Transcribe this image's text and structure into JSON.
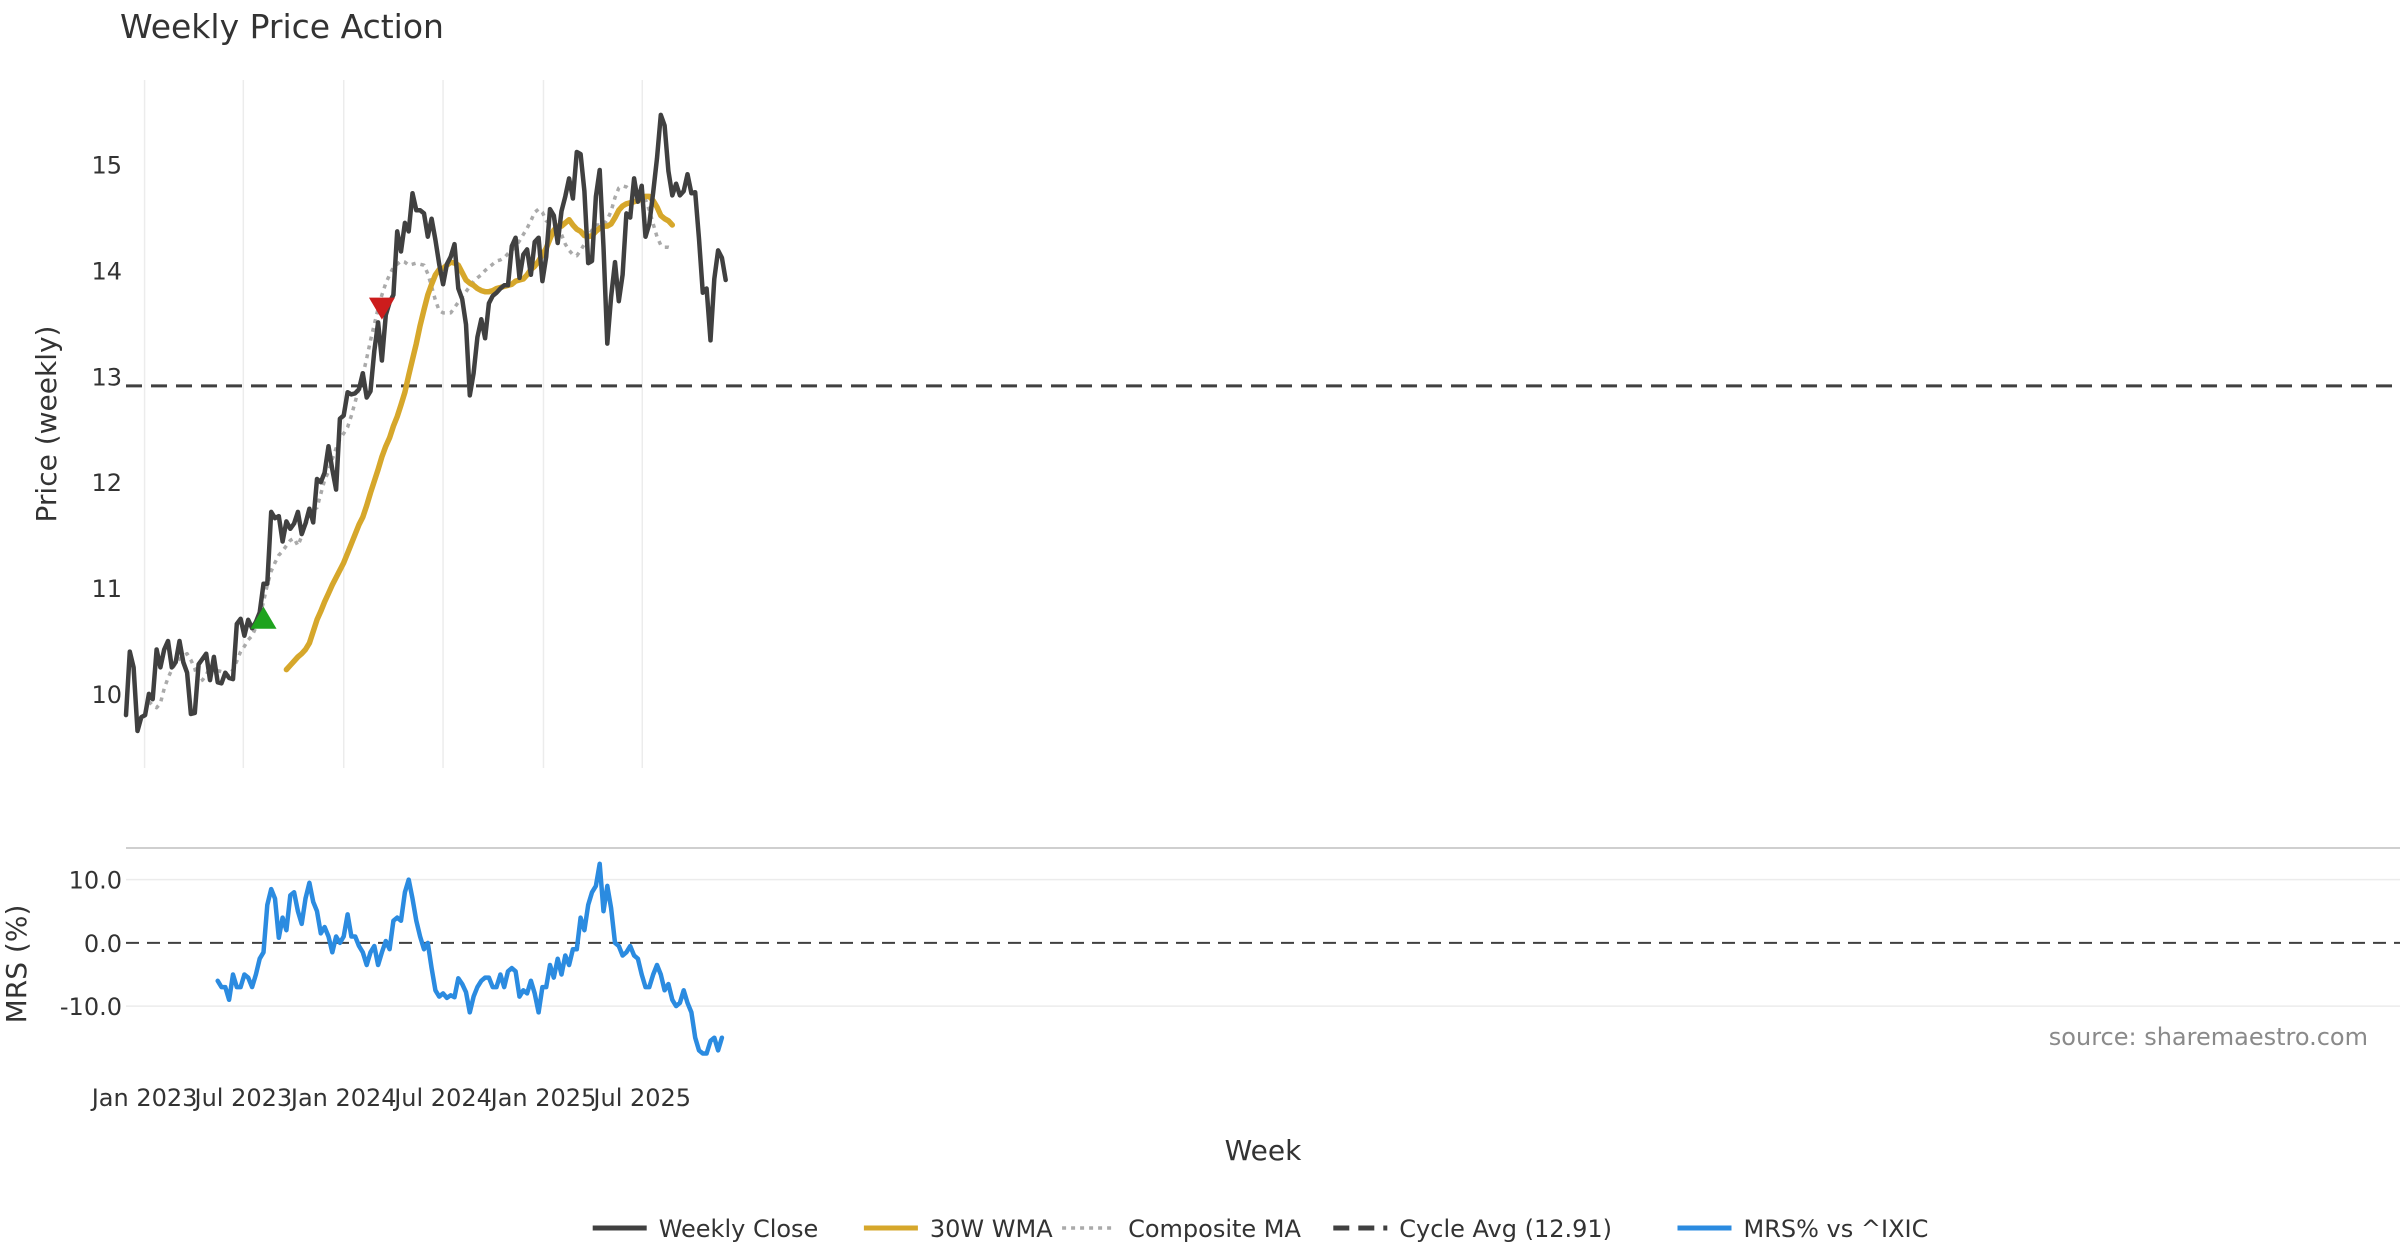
{
  "chart_data": [
    {
      "type": "line",
      "title": "Weekly Price Action",
      "ylabel": "Price (weekly)",
      "ylim": [
        9.3,
        15.8
      ],
      "yticks": [
        "10",
        "11",
        "12",
        "13",
        "14",
        "15"
      ],
      "grid": "vertical",
      "start_week": "2022-11-28",
      "x_label": "Week",
      "series": [
        {
          "name": "Weekly Close",
          "color": "#404040",
          "style": "solid",
          "values": [
            9.8,
            10.4,
            10.25,
            9.65,
            9.78,
            9.8,
            10,
            9.95,
            10.42,
            10.25,
            10.42,
            10.5,
            10.25,
            10.3,
            10.5,
            10.3,
            10.2,
            9.81,
            9.82,
            10.28,
            10.33,
            10.38,
            10.13,
            10.35,
            10.11,
            10.1,
            10.2,
            10.15,
            10.14,
            10.66,
            10.71,
            10.55,
            10.7,
            10.62,
            10.68,
            10.77,
            11.04,
            11.04,
            11.72,
            11.66,
            11.68,
            11.44,
            11.63,
            11.56,
            11.61,
            11.72,
            11.51,
            11.61,
            11.75,
            11.62,
            12.03,
            12,
            12.09,
            12.34,
            12.12,
            11.93,
            12.6,
            12.63,
            12.85,
            12.83,
            12.84,
            12.88,
            13.03,
            12.8,
            12.86,
            13.24,
            13.51,
            13.15,
            13.58,
            13.7,
            13.77,
            14.37,
            14.18,
            14.45,
            14.37,
            14.73,
            14.57,
            14.57,
            14.54,
            14.32,
            14.49,
            14.29,
            14.06,
            13.87,
            14.06,
            14.13,
            14.25,
            13.83,
            13.73,
            13.49,
            12.82,
            13.03,
            13.37,
            13.54,
            13.36,
            13.69,
            13.76,
            13.79,
            13.83,
            13.86,
            13.86,
            14.23,
            14.31,
            13.93,
            14.15,
            14.2,
            13.96,
            14.27,
            14.31,
            13.9,
            14.13,
            14.58,
            14.52,
            14.26,
            14.56,
            14.7,
            14.87,
            14.68,
            15.12,
            15.1,
            14.75,
            14.07,
            14.09,
            14.7,
            14.95,
            14.22,
            13.31,
            13.75,
            14.08,
            13.71,
            13.96,
            14.54,
            14.5,
            14.87,
            14.65,
            14.8,
            14.32,
            14.44,
            14.74,
            15.06,
            15.47,
            15.37,
            14.94,
            14.71,
            14.82,
            14.71,
            14.75,
            14.91,
            14.73,
            14.74,
            14.3,
            13.79,
            13.83,
            13.34,
            13.92,
            14.19,
            14.12,
            13.91
          ]
        },
        {
          "name": "30W WMA",
          "color": "#d6a72b",
          "style": "solid",
          "start_index": 42,
          "values": [
            10.23,
            10.27,
            10.31,
            10.35,
            10.38,
            10.42,
            10.48,
            10.59,
            10.7,
            10.78,
            10.87,
            10.95,
            11.03,
            11.1,
            11.17,
            11.24,
            11.33,
            11.42,
            11.51,
            11.6,
            11.67,
            11.78,
            11.9,
            12.01,
            12.12,
            12.24,
            12.34,
            12.42,
            12.53,
            12.62,
            12.73,
            12.85,
            13.01,
            13.16,
            13.31,
            13.48,
            13.63,
            13.77,
            13.87,
            13.96,
            14.01,
            14.02,
            14.05,
            14.08,
            14.07,
            14.05,
            13.98,
            13.91,
            13.88,
            13.86,
            13.83,
            13.81,
            13.8,
            13.8,
            13.81,
            13.83,
            13.84,
            13.85,
            13.86,
            13.87,
            13.9,
            13.91,
            13.92,
            13.96,
            14.01,
            14.04,
            14.09,
            14.15,
            14.21,
            14.3,
            14.38,
            14.42,
            14.42,
            14.45,
            14.48,
            14.43,
            14.39,
            14.37,
            14.33,
            14.32,
            14.33,
            14.37,
            14.4,
            14.42,
            14.42,
            14.44,
            14.5,
            14.57,
            14.61,
            14.63,
            14.64,
            14.65,
            14.66,
            14.68,
            14.7,
            14.7,
            14.66,
            14.6,
            14.52,
            14.49,
            14.47,
            14.43
          ]
        },
        {
          "name": "Composite MA",
          "color": "#aaaaaa",
          "style": "dotted",
          "start_index": 6,
          "values": [
            9.93,
            9.89,
            9.87,
            9.91,
            10.05,
            10.15,
            10.23,
            10.29,
            10.33,
            10.36,
            10.38,
            10.32,
            10.24,
            10.11,
            10.13,
            10.18,
            10.25,
            10.27,
            10.22,
            10.21,
            10.19,
            10.17,
            10.23,
            10.31,
            10.4,
            10.45,
            10.51,
            10.55,
            10.63,
            10.73,
            10.87,
            11.03,
            11.16,
            11.24,
            11.31,
            11.35,
            11.4,
            11.45,
            11.47,
            11.4,
            11.49,
            11.6,
            11.68,
            11.74,
            11.76,
            11.89,
            12.02,
            12.1,
            12.22,
            12.32,
            12.41,
            12.46,
            12.52,
            12.63,
            12.76,
            12.89,
            13.01,
            13.17,
            13.34,
            13.49,
            13.64,
            13.77,
            13.88,
            13.96,
            14.03,
            14.06,
            14.09,
            14.08,
            14.05,
            14.06,
            14.07,
            14.06,
            14.05,
            13.97,
            13.85,
            13.72,
            13.62,
            13.6,
            13.6,
            13.6,
            13.65,
            13.7,
            13.75,
            13.8,
            13.85,
            13.9,
            13.93,
            13.96,
            14,
            14.03,
            14.06,
            14.09,
            14.1,
            14.12,
            14.16,
            14.19,
            14.23,
            14.28,
            14.34,
            14.4,
            14.47,
            14.55,
            14.58,
            14.55,
            14.47,
            14.45,
            14.48,
            14.44,
            14.34,
            14.25,
            14.19,
            14.15,
            14.14,
            14.19,
            14.25,
            14.32,
            14.38,
            14.43,
            14.43,
            14.43,
            14.48,
            14.56,
            14.69,
            14.78,
            14.8,
            14.79,
            14.76,
            14.74,
            14.73,
            14.74,
            14.67,
            14.57,
            14.44,
            14.32,
            14.24,
            14.22,
            14.22,
            14.21
          ]
        }
      ],
      "reference_lines": [
        {
          "name": "Cycle Avg (12.91)",
          "value": 12.91,
          "style": "dashed",
          "color": "#404040"
        }
      ],
      "markers": [
        {
          "type": "buy",
          "index": 36,
          "value": 10.72,
          "color": "#1ea31e"
        },
        {
          "type": "sell",
          "index": 67,
          "value": 13.64,
          "color": "#cc1c1c"
        }
      ]
    },
    {
      "type": "line",
      "ylabel": "MRS (%)",
      "ylim": [
        -19,
        15
      ],
      "yticks": [
        "10.0",
        "0.0",
        "-10.0"
      ],
      "xlabel": "Week",
      "xticks": [
        "Jan 2023",
        "Jul 2023",
        "Jan 2024",
        "Jul 2024",
        "Jan 2025",
        "Jul 2025"
      ],
      "series": [
        {
          "name": "MRS% vs ^IXIC",
          "color": "#2b8be0",
          "style": "solid",
          "start_index": 24,
          "values": [
            -6,
            -7,
            -7,
            -9,
            -5,
            -7,
            -7,
            -5,
            -5.5,
            -7,
            -5,
            -2.5,
            -1.5,
            6,
            8.5,
            7,
            0.8,
            4,
            2,
            7.5,
            8,
            5,
            3,
            7,
            9.5,
            6.5,
            5,
            1.5,
            2.5,
            1,
            -1.5,
            1,
            0,
            1,
            4.5,
            1,
            1,
            -0.5,
            -1.5,
            -3.5,
            -1.5,
            -0.5,
            -3.5,
            -1.5,
            0.3,
            -1,
            3.5,
            4,
            3.5,
            8,
            10,
            7,
            3.5,
            1,
            -1,
            0,
            -4,
            -7.5,
            -8.5,
            -8,
            -8.7,
            -8.3,
            -8.6,
            -5.6,
            -6.5,
            -7.8,
            -11,
            -8.5,
            -7,
            -6,
            -5.5,
            -5.5,
            -7,
            -7,
            -5,
            -7,
            -4.5,
            -4,
            -4.5,
            -8.5,
            -7.5,
            -8,
            -6,
            -8,
            -11,
            -7,
            -7,
            -3.5,
            -5.5,
            -2.5,
            -5,
            -2,
            -3.5,
            -1,
            -1,
            4,
            2,
            6,
            8,
            9,
            12.5,
            5,
            9,
            5.5,
            0,
            -0.5,
            -2,
            -1.5,
            -0.5,
            -2,
            -2.5,
            -5,
            -7,
            -7,
            -5,
            -3.5,
            -5,
            -7.5,
            -6.5,
            -9,
            -10,
            -9.5,
            -7.5,
            -9.5,
            -11,
            -15,
            -17,
            -17.5,
            -17.5,
            -15.5,
            -15,
            -17,
            -15
          ]
        }
      ],
      "reference_lines": [
        {
          "name": "zero",
          "value": 0,
          "style": "dashed",
          "color": "#404040"
        }
      ],
      "annotation": "source: sharemaestro.com"
    }
  ],
  "legend": {
    "items": [
      {
        "label": "Weekly Close",
        "color": "#404040",
        "style": "solid"
      },
      {
        "label": "30W WMA",
        "color": "#d6a72b",
        "style": "solid"
      },
      {
        "label": "Composite MA",
        "color": "#aaaaaa",
        "style": "dotted"
      },
      {
        "label": "Cycle Avg (12.91)",
        "color": "#404040",
        "style": "dashed"
      },
      {
        "label": "MRS% vs ^IXIC",
        "color": "#2b8be0",
        "style": "solid"
      }
    ]
  }
}
